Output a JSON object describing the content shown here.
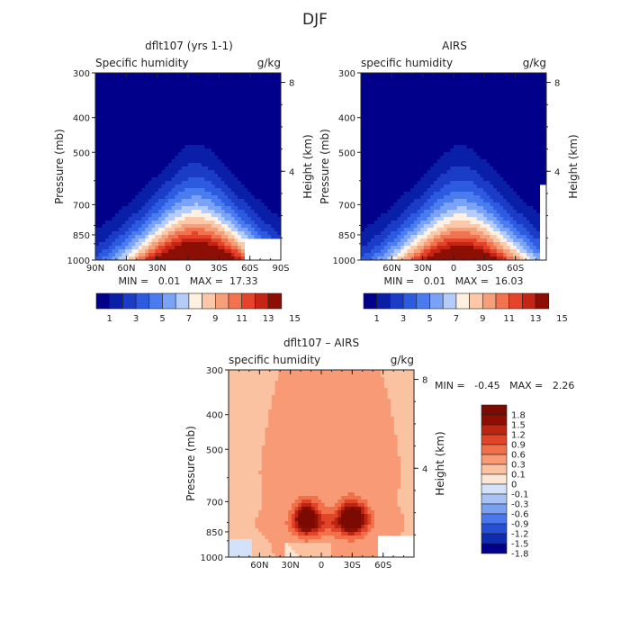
{
  "colors": {
    "scale_abs": [
      "#00008b",
      "#0a1fa8",
      "#1a3cc6",
      "#2d5be0",
      "#4a7cf0",
      "#7aa3f5",
      "#b5ccf8",
      "#fff0e0",
      "#fcc8a8",
      "#f79f78",
      "#f37350",
      "#e5432c",
      "#c42514",
      "#8c0f05"
    ],
    "scale_diff": [
      "#00008b",
      "#0f2bb0",
      "#2550d5",
      "#4a78ec",
      "#7aa0f2",
      "#a8c2f5",
      "#d3e2f8",
      "#fde6d5",
      "#fbc2a2",
      "#f79a75",
      "#f1704a",
      "#e0452a",
      "#bc2610",
      "#8c0f05"
    ]
  },
  "labels": {
    "suptitle": "DJF",
    "pressure_axis": "Pressure (mb)",
    "height_axis": "Height (km)",
    "field": "Specific humidity",
    "field_lc": "specific humidity",
    "units": "g/kg"
  },
  "chart_data": [
    {
      "type": "heatmap",
      "title": "dflt107 (yrs 1-1)",
      "left_label": "Specific humidity",
      "units": "g/kg",
      "ylabel": "Pressure (mb)",
      "ylabel_right": "Height (km)",
      "pressure_ticks": [
        "300",
        "400",
        "500",
        "700",
        "850",
        "1000"
      ],
      "height_ticks": [
        "8",
        "4"
      ],
      "lat_ticks": [
        "90N",
        "60N",
        "30N",
        "0",
        "30S",
        "60S",
        "90S"
      ],
      "stats": "MIN =   0.01   MAX =  17.33",
      "peak": 17.33,
      "colorbar_ticks": [
        "1",
        "3",
        "5",
        "7",
        "9",
        "11",
        "13",
        "15"
      ]
    },
    {
      "type": "heatmap",
      "title": "AIRS",
      "left_label": "specific humidity",
      "units": "g/kg",
      "ylabel": "Pressure (mb)",
      "ylabel_right": "Height (km)",
      "pressure_ticks": [
        "300",
        "400",
        "500",
        "700",
        "850",
        "1000"
      ],
      "height_ticks": [
        "8",
        "4"
      ],
      "lat_ticks": [
        "60N",
        "30N",
        "0",
        "30S",
        "60S"
      ],
      "stats": "MIN =   0.01   MAX =  16.03",
      "peak": 16.03,
      "colorbar_ticks": [
        "1",
        "3",
        "5",
        "7",
        "9",
        "11",
        "13",
        "15"
      ]
    },
    {
      "type": "heatmap",
      "title": "dflt107 – AIRS",
      "left_label": "specific humidity",
      "units": "g/kg",
      "ylabel": "Pressure (mb)",
      "ylabel_right": "Height (km)",
      "pressure_ticks": [
        "300",
        "400",
        "500",
        "700",
        "850",
        "1000"
      ],
      "height_ticks": [
        "8",
        "4"
      ],
      "lat_ticks": [
        "60N",
        "30N",
        "0",
        "30S",
        "60S"
      ],
      "stats": "MIN =   -0.45   MAX =   2.26",
      "colorbar_levels": [
        "1.8",
        "1.5",
        "1.2",
        "0.9",
        "0.6",
        "0.3",
        "0.1",
        "0",
        "-0.1",
        "-0.3",
        "-0.6",
        "-0.9",
        "-1.2",
        "-1.5",
        "-1.8"
      ]
    }
  ]
}
